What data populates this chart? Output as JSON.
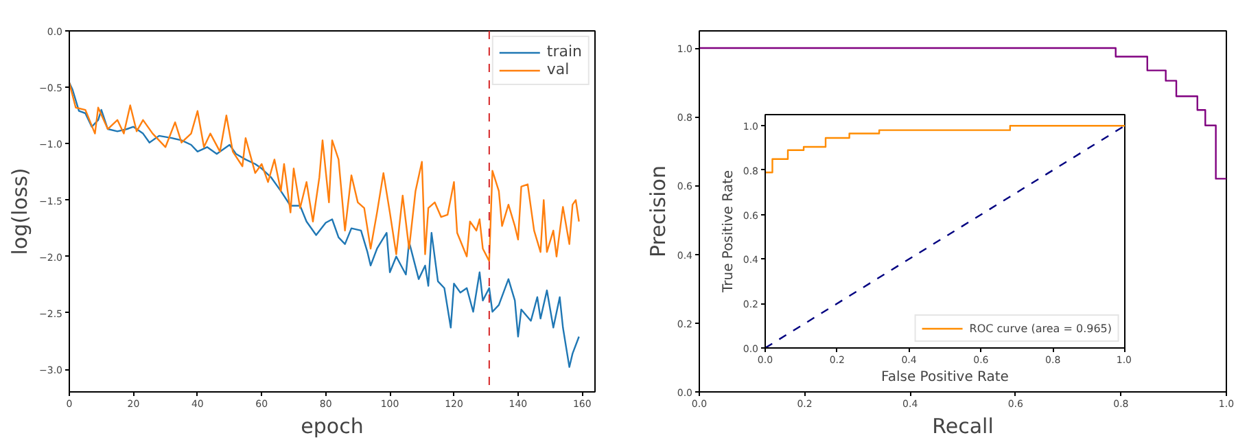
{
  "chart_data": [
    {
      "type": "line",
      "xlabel": "epoch",
      "ylabel": "log(loss)",
      "xlim": [
        0,
        164
      ],
      "ylim": [
        -3.2,
        0
      ],
      "xticks": [
        0,
        20,
        40,
        60,
        80,
        100,
        120,
        140,
        160
      ],
      "yticks": [
        {
          "value": -3.0,
          "label": "−3.0"
        },
        {
          "value": -2.5,
          "label": "−2.5"
        },
        {
          "value": -2.0,
          "label": "−2.0"
        },
        {
          "value": -1.5,
          "label": "−1.5"
        },
        {
          "value": -1.0,
          "label": "−1.0"
        },
        {
          "value": -0.5,
          "label": "−0.5"
        },
        {
          "value": 0,
          "label": "0.0"
        }
      ],
      "legend": "top right",
      "ref_lines": [
        {
          "axis": "x",
          "value": 131,
          "color": "#d62728",
          "line_style": "dashed"
        }
      ],
      "series": [
        {
          "name": "train",
          "color": "#1f77b4",
          "x": [
            0,
            1,
            3,
            5,
            7,
            9,
            10,
            12,
            15,
            18,
            20,
            23,
            25,
            28,
            32,
            35,
            38,
            40,
            43,
            46,
            50,
            52,
            55,
            58,
            60,
            63,
            66,
            69,
            72,
            74,
            77,
            80,
            82,
            84,
            86,
            88,
            91,
            93,
            94,
            96,
            99,
            100,
            102,
            105,
            106,
            109,
            111,
            112,
            113,
            115,
            117,
            119,
            120,
            122,
            124,
            126,
            128,
            129,
            131,
            132,
            134,
            137,
            139,
            140,
            141,
            144,
            146,
            147,
            149,
            151,
            153,
            154,
            156,
            157,
            159
          ],
          "values": [
            -0.46,
            -0.52,
            -0.71,
            -0.73,
            -0.85,
            -0.79,
            -0.7,
            -0.87,
            -0.89,
            -0.87,
            -0.85,
            -0.91,
            -0.99,
            -0.93,
            -0.95,
            -0.97,
            -1.01,
            -1.07,
            -1.03,
            -1.09,
            -1.01,
            -1.09,
            -1.14,
            -1.18,
            -1.22,
            -1.3,
            -1.42,
            -1.55,
            -1.55,
            -1.69,
            -1.81,
            -1.7,
            -1.67,
            -1.83,
            -1.89,
            -1.75,
            -1.77,
            -1.96,
            -2.08,
            -1.93,
            -1.79,
            -2.14,
            -2.0,
            -2.16,
            -1.87,
            -2.2,
            -2.08,
            -2.26,
            -1.79,
            -2.22,
            -2.28,
            -2.63,
            -2.24,
            -2.32,
            -2.28,
            -2.49,
            -2.14,
            -2.39,
            -2.28,
            -2.49,
            -2.43,
            -2.2,
            -2.39,
            -2.71,
            -2.47,
            -2.57,
            -2.36,
            -2.55,
            -2.3,
            -2.63,
            -2.36,
            -2.63,
            -2.98,
            -2.86,
            -2.71
          ]
        },
        {
          "name": "val",
          "color": "#ff7f0e",
          "x": [
            0,
            2,
            5,
            8,
            9,
            12,
            15,
            17,
            19,
            21,
            23,
            26,
            30,
            33,
            35,
            38,
            40,
            42,
            44,
            47,
            49,
            51,
            54,
            55,
            58,
            60,
            62,
            64,
            66,
            67,
            69,
            70,
            72,
            74,
            76,
            78,
            79,
            81,
            82,
            84,
            86,
            88,
            90,
            92,
            94,
            96,
            98,
            100,
            102,
            104,
            106,
            108,
            110,
            111,
            112,
            114,
            116,
            118,
            120,
            121,
            124,
            125,
            127,
            128,
            129,
            131,
            132,
            134,
            135,
            137,
            139,
            140,
            141,
            143,
            145,
            147,
            148,
            149,
            151,
            152,
            154,
            156,
            157,
            158,
            159
          ],
          "values": [
            -0.46,
            -0.68,
            -0.7,
            -0.91,
            -0.68,
            -0.87,
            -0.79,
            -0.91,
            -0.66,
            -0.89,
            -0.79,
            -0.91,
            -1.03,
            -0.81,
            -0.99,
            -0.91,
            -0.71,
            -1.03,
            -0.91,
            -1.07,
            -0.75,
            -1.07,
            -1.2,
            -0.95,
            -1.26,
            -1.18,
            -1.34,
            -1.14,
            -1.42,
            -1.18,
            -1.61,
            -1.22,
            -1.57,
            -1.34,
            -1.69,
            -1.3,
            -0.97,
            -1.52,
            -0.97,
            -1.14,
            -1.77,
            -1.28,
            -1.52,
            -1.57,
            -1.93,
            -1.61,
            -1.26,
            -1.61,
            -1.98,
            -1.46,
            -1.93,
            -1.42,
            -1.16,
            -1.98,
            -1.57,
            -1.52,
            -1.65,
            -1.63,
            -1.34,
            -1.79,
            -2.0,
            -1.69,
            -1.77,
            -1.67,
            -1.93,
            -2.04,
            -1.24,
            -1.42,
            -1.73,
            -1.54,
            -1.73,
            -1.85,
            -1.38,
            -1.36,
            -1.77,
            -1.96,
            -1.5,
            -1.96,
            -1.77,
            -2.0,
            -1.56,
            -1.89,
            -1.54,
            -1.5,
            -1.69
          ]
        }
      ]
    },
    {
      "type": "step",
      "xlabel": "Recall",
      "ylabel": "Precision",
      "xlim": [
        0,
        1
      ],
      "ylim": [
        0,
        1.05
      ],
      "xticks": [
        {
          "value": 0,
          "label": "0.0"
        },
        {
          "value": 0.2,
          "label": "0.2"
        },
        {
          "value": 0.4,
          "label": "0.4"
        },
        {
          "value": 0.6,
          "label": "0.6"
        },
        {
          "value": 0.8,
          "label": "0.8"
        },
        {
          "value": 1,
          "label": "1.0"
        }
      ],
      "yticks": [
        {
          "value": 0,
          "label": "0.0"
        },
        {
          "value": 0.2,
          "label": "0.2"
        },
        {
          "value": 0.4,
          "label": "0.4"
        },
        {
          "value": 0.6,
          "label": "0.6"
        },
        {
          "value": 0.8,
          "label": "0.8"
        },
        {
          "value": 1,
          "label": "1.0"
        }
      ],
      "series": [
        {
          "color": "#800080",
          "x": [
            0,
            0.79,
            0.85,
            0.885,
            0.905,
            0.945,
            0.96,
            0.98,
            1.0
          ],
          "values": [
            1.0,
            0.975,
            0.935,
            0.905,
            0.86,
            0.82,
            0.775,
            0.62,
            0.62
          ]
        }
      ]
    },
    {
      "type": "step",
      "xlabel": "False Positive Rate",
      "ylabel": "True Positive Rate",
      "xlim": [
        0,
        1
      ],
      "ylim": [
        0,
        1.05
      ],
      "xticks": [
        {
          "value": 0,
          "label": "0.0"
        },
        {
          "value": 0.2,
          "label": "0.2"
        },
        {
          "value": 0.4,
          "label": "0.4"
        },
        {
          "value": 0.6,
          "label": "0.6"
        },
        {
          "value": 0.8,
          "label": "0.8"
        },
        {
          "value": 1,
          "label": "1.0"
        }
      ],
      "yticks": [
        {
          "value": 0,
          "label": "0.0"
        },
        {
          "value": 0.2,
          "label": "0.2"
        },
        {
          "value": 0.4,
          "label": "0.4"
        },
        {
          "value": 0.6,
          "label": "0.6"
        },
        {
          "value": 0.8,
          "label": "0.8"
        },
        {
          "value": 1,
          "label": "1.0"
        }
      ],
      "legend": "bottom right",
      "series": [
        {
          "name": "ROC curve (area = 0.965)",
          "color": "#ff8c00",
          "x": [
            0,
            0.02,
            0.063,
            0.107,
            0.168,
            0.234,
            0.317,
            0.681,
            1.0
          ],
          "values": [
            0.79,
            0.85,
            0.89,
            0.905,
            0.945,
            0.965,
            0.98,
            1.0,
            1.0
          ]
        },
        {
          "type": "line",
          "line_style": "dashed",
          "color": "#000080",
          "x": [
            0,
            1
          ],
          "values": [
            0,
            1
          ]
        }
      ]
    }
  ]
}
